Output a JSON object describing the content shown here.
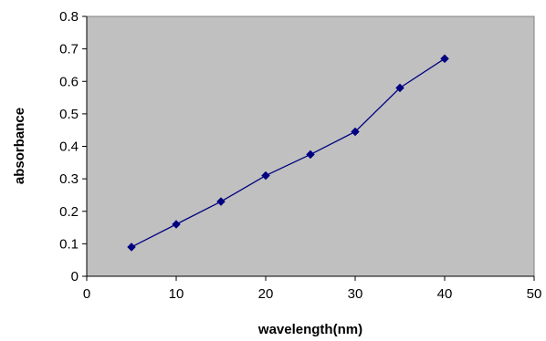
{
  "chart_data": {
    "type": "line",
    "title": "",
    "xlabel": "wavelength(nm)",
    "ylabel": "absorbance",
    "xlim": [
      0,
      50
    ],
    "ylim": [
      0,
      0.8
    ],
    "x_ticks": [
      "0",
      "10",
      "20",
      "30",
      "40",
      "50"
    ],
    "y_ticks": [
      "0",
      "0.1",
      "0.2",
      "0.3",
      "0.4",
      "0.5",
      "0.6",
      "0.7",
      "0.8"
    ],
    "grid": false,
    "legend": "none",
    "colors": {
      "plot_background": "#c0c0c0",
      "series_line": "#000080",
      "marker": "#000080"
    },
    "series": [
      {
        "x": [
          5,
          10,
          15,
          20,
          25,
          30,
          35,
          40
        ],
        "y": [
          0.09,
          0.16,
          0.23,
          0.31,
          0.375,
          0.445,
          0.58,
          0.67
        ]
      }
    ]
  }
}
